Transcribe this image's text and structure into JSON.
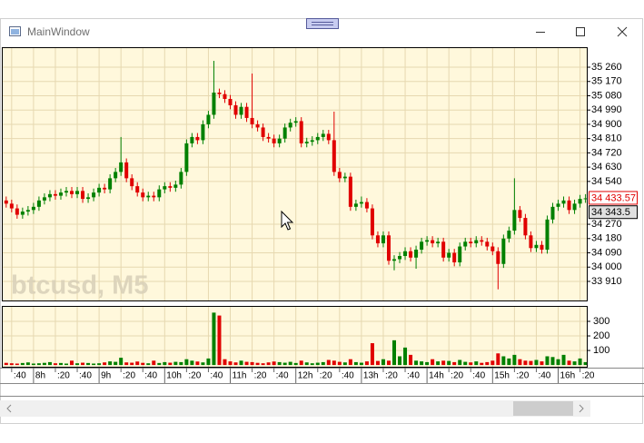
{
  "window": {
    "title": "MainWindow"
  },
  "chart_data": [
    {
      "type": "candlestick",
      "watermark": "btcusd, M5",
      "up_color": "#008000",
      "down_color": "#e00000",
      "grid": true,
      "x": [
        455,
        460,
        465,
        470,
        475,
        480,
        485,
        490,
        495,
        500,
        505,
        510,
        515,
        520,
        525,
        530,
        535,
        540,
        545,
        550,
        555,
        560,
        565,
        570,
        575,
        580,
        585,
        590,
        595,
        600,
        605,
        610,
        615,
        620,
        625,
        630,
        635,
        640,
        645,
        650,
        655,
        660,
        665,
        670,
        675,
        680,
        685,
        690,
        695,
        700,
        705,
        710,
        715,
        720,
        725,
        730,
        735,
        740,
        745,
        750,
        755,
        760,
        765,
        770,
        775,
        780,
        785,
        790,
        795,
        800,
        805,
        810,
        815,
        820,
        825,
        830,
        835,
        840,
        845,
        850,
        855,
        860,
        865,
        870,
        875,
        880,
        885,
        890,
        895,
        900,
        905,
        910,
        915,
        920,
        925,
        930,
        935,
        940,
        945,
        950,
        955,
        960,
        965,
        970,
        975,
        980,
        985
      ],
      "open": [
        34420,
        34400,
        34370,
        34330,
        34350,
        34360,
        34380,
        34420,
        34440,
        34460,
        34450,
        34470,
        34480,
        34460,
        34480,
        34430,
        34440,
        34470,
        34500,
        34490,
        34560,
        34600,
        34660,
        34560,
        34510,
        34470,
        34440,
        34450,
        34440,
        34490,
        34510,
        34500,
        34520,
        34600,
        34780,
        34820,
        34800,
        34900,
        34960,
        35100,
        35090,
        35060,
        35020,
        34960,
        35010,
        34940,
        34900,
        34880,
        34820,
        34810,
        34780,
        34810,
        34880,
        34910,
        34920,
        34780,
        34790,
        34800,
        34820,
        34840,
        34800,
        34600,
        34560,
        34570,
        34380,
        34400,
        34410,
        34370,
        34200,
        34150,
        34200,
        34040,
        34050,
        34070,
        34100,
        34060,
        34110,
        34160,
        34170,
        34150,
        34160,
        34060,
        34090,
        34030,
        34130,
        34160,
        34150,
        34170,
        34160,
        34130,
        34100,
        34020,
        34180,
        34230,
        34360,
        34310,
        34200,
        34120,
        34140,
        34110,
        34300,
        34380,
        34400,
        34420,
        34360,
        34400,
        34430
      ],
      "high": [
        34445,
        34425,
        34395,
        34375,
        34385,
        34405,
        34445,
        34465,
        34485,
        34485,
        34495,
        34505,
        34505,
        34505,
        34505,
        34465,
        34495,
        34525,
        34525,
        34585,
        34625,
        34820,
        34685,
        34585,
        34535,
        34495,
        34475,
        34475,
        34515,
        34535,
        34535,
        34545,
        34625,
        34805,
        34845,
        34845,
        34925,
        34985,
        35300,
        35125,
        35115,
        35085,
        35045,
        35035,
        35035,
        35220,
        34925,
        34905,
        34845,
        34835,
        34835,
        34905,
        34935,
        34945,
        34945,
        34815,
        34825,
        34845,
        34865,
        34865,
        34980,
        34625,
        34595,
        34595,
        34425,
        34445,
        34435,
        34395,
        34225,
        34225,
        34225,
        34075,
        34095,
        34125,
        34125,
        34135,
        34185,
        34195,
        34195,
        34185,
        34185,
        34115,
        34115,
        34155,
        34185,
        34185,
        34195,
        34195,
        34185,
        34155,
        34125,
        34205,
        34255,
        34560,
        34385,
        34335,
        34225,
        34165,
        34165,
        34325,
        34405,
        34425,
        34445,
        34445,
        34425,
        34455,
        34460
      ],
      "low": [
        34375,
        34345,
        34305,
        34305,
        34325,
        34335,
        34355,
        34395,
        34415,
        34425,
        34425,
        34445,
        34435,
        34435,
        34405,
        34405,
        34415,
        34445,
        34465,
        34465,
        34535,
        34575,
        34535,
        34485,
        34445,
        34415,
        34415,
        34415,
        34415,
        34465,
        34475,
        34475,
        34495,
        34575,
        34755,
        34775,
        34775,
        34875,
        34935,
        35065,
        35035,
        34995,
        34935,
        34935,
        34915,
        34875,
        34855,
        34795,
        34785,
        34755,
        34755,
        34785,
        34855,
        34885,
        34755,
        34755,
        34765,
        34775,
        34795,
        34775,
        34575,
        34535,
        34535,
        34355,
        34355,
        34375,
        34345,
        34175,
        34125,
        34125,
        34015,
        33980,
        34025,
        34045,
        34035,
        33990,
        34085,
        34135,
        34125,
        34125,
        34035,
        34035,
        34005,
        34005,
        34105,
        34125,
        34125,
        34135,
        34105,
        34075,
        33860,
        33995,
        34155,
        34205,
        34285,
        34175,
        34095,
        34095,
        34085,
        34085,
        34275,
        34355,
        34375,
        34335,
        34335,
        34375,
        34405
      ],
      "close": [
        34400,
        34370,
        34330,
        34350,
        34360,
        34380,
        34420,
        34440,
        34460,
        34450,
        34470,
        34480,
        34460,
        34480,
        34430,
        34440,
        34470,
        34500,
        34490,
        34560,
        34600,
        34660,
        34560,
        34510,
        34470,
        34440,
        34450,
        34440,
        34490,
        34510,
        34500,
        34520,
        34600,
        34780,
        34820,
        34800,
        34900,
        34960,
        35100,
        35090,
        35060,
        35020,
        34960,
        35010,
        34940,
        34900,
        34880,
        34820,
        34810,
        34780,
        34810,
        34880,
        34910,
        34920,
        34780,
        34790,
        34800,
        34820,
        34840,
        34800,
        34600,
        34560,
        34570,
        34380,
        34400,
        34410,
        34370,
        34200,
        34150,
        34200,
        34040,
        34050,
        34070,
        34100,
        34060,
        34110,
        34160,
        34170,
        34150,
        34160,
        34060,
        34090,
        34030,
        34130,
        34160,
        34150,
        34170,
        34160,
        34130,
        34100,
        34020,
        34180,
        34230,
        34360,
        34310,
        34200,
        34120,
        34140,
        34110,
        34300,
        34380,
        34400,
        34420,
        34360,
        34400,
        34430,
        34433.57
      ],
      "xlim": [
        451,
        987
      ],
      "xticks": [
        {
          "value": 460,
          "label": ":40"
        },
        {
          "value": 480,
          "label": "8h"
        },
        {
          "value": 500,
          "label": ":20"
        },
        {
          "value": 520,
          "label": ":40"
        },
        {
          "value": 540,
          "label": "9h"
        },
        {
          "value": 560,
          "label": ":20"
        },
        {
          "value": 580,
          "label": ":40"
        },
        {
          "value": 600,
          "label": "10h"
        },
        {
          "value": 620,
          "label": ":20"
        },
        {
          "value": 640,
          "label": ":40"
        },
        {
          "value": 660,
          "label": "11h"
        },
        {
          "value": 680,
          "label": ":20"
        },
        {
          "value": 700,
          "label": ":40"
        },
        {
          "value": 720,
          "label": "12h"
        },
        {
          "value": 740,
          "label": ":20"
        },
        {
          "value": 760,
          "label": ":40"
        },
        {
          "value": 780,
          "label": "13h"
        },
        {
          "value": 800,
          "label": ":20"
        },
        {
          "value": 820,
          "label": ":40"
        },
        {
          "value": 840,
          "label": "14h"
        },
        {
          "value": 860,
          "label": ":20"
        },
        {
          "value": 880,
          "label": ":40"
        },
        {
          "value": 900,
          "label": "15h"
        },
        {
          "value": 920,
          "label": ":20"
        },
        {
          "value": 940,
          "label": ":40"
        },
        {
          "value": 960,
          "label": "16h"
        },
        {
          "value": 980,
          "label": ":20"
        }
      ],
      "ylim": [
        33784,
        35386
      ],
      "yticks": [
        {
          "value": 35260,
          "label": "35 260"
        },
        {
          "value": 35170,
          "label": "35 170"
        },
        {
          "value": 35080,
          "label": "35 080"
        },
        {
          "value": 34990,
          "label": "34 990"
        },
        {
          "value": 34900,
          "label": "34 900"
        },
        {
          "value": 34810,
          "label": "34 810"
        },
        {
          "value": 34720,
          "label": "34 720"
        },
        {
          "value": 34630,
          "label": "34 630"
        },
        {
          "value": 34540,
          "label": "34 540"
        },
        {
          "value": 34270,
          "label": "34 270"
        },
        {
          "value": 34180,
          "label": "34 180"
        },
        {
          "value": 34090,
          "label": "34 090"
        },
        {
          "value": 34000,
          "label": "34 000"
        },
        {
          "value": 33910,
          "label": "33 910"
        }
      ],
      "annotations": [
        {
          "value": 34433.57,
          "label": "34 433.57",
          "color": "#e00000"
        },
        {
          "value": 34343.5,
          "label": "34 343.5",
          "color": "#000000"
        }
      ]
    },
    {
      "type": "bar",
      "values": [
        15,
        12,
        10,
        14,
        18,
        10,
        12,
        15,
        20,
        12,
        14,
        10,
        30,
        12,
        16,
        14,
        10,
        12,
        18,
        25,
        22,
        50,
        18,
        16,
        24,
        15,
        12,
        30,
        14,
        20,
        16,
        22,
        20,
        40,
        30,
        24,
        18,
        45,
        360,
        340,
        40,
        25,
        18,
        30,
        22,
        20,
        15,
        12,
        18,
        24,
        20,
        16,
        22,
        14,
        30,
        18,
        12,
        16,
        20,
        35,
        30,
        22,
        18,
        40,
        20,
        16,
        25,
        150,
        28,
        40,
        30,
        170,
        60,
        120,
        70,
        30,
        25,
        20,
        40,
        25,
        30,
        28,
        20,
        35,
        22,
        18,
        25,
        15,
        20,
        30,
        80,
        60,
        45,
        70,
        40,
        30,
        28,
        35,
        25,
        60,
        55,
        40,
        70,
        30,
        25,
        45,
        20
      ],
      "ylim": [
        -18,
        406
      ],
      "yticks": [
        100,
        200,
        300
      ]
    }
  ]
}
